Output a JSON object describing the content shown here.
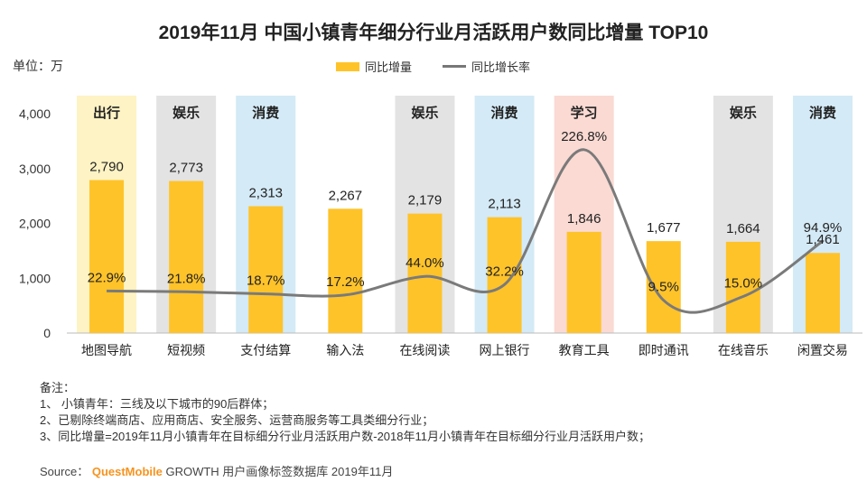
{
  "title": "2019年11月 中国小镇青年细分行业月活跃用户数同比增量 TOP10",
  "unit_label": "单位：万",
  "legend": {
    "bar": "同比增量",
    "line": "同比增长率"
  },
  "chart_data": {
    "type": "bar+line",
    "title": "2019年11月 中国小镇青年细分行业月活跃用户数同比增量 TOP10",
    "categories": [
      "地图导航",
      "短视频",
      "支付结算",
      "输入法",
      "在线阅读",
      "网上银行",
      "教育工具",
      "即时通讯",
      "在线音乐",
      "闲置交易"
    ],
    "groups": [
      "出行",
      "娱乐",
      "消费",
      "",
      "娱乐",
      "消费",
      "学习",
      "",
      "娱乐",
      "消费"
    ],
    "group_colors": {
      "出行": "#FDF3C4",
      "娱乐": "#E3E3E3",
      "消费": "#D4EAF6",
      "学习": "#FADAD3"
    },
    "series": [
      {
        "name": "同比增量",
        "type": "bar",
        "color": "#FFC32A",
        "values": [
          2790,
          2773,
          2313,
          2267,
          2179,
          2113,
          1846,
          1677,
          1664,
          1461
        ],
        "labels": [
          "2,790",
          "2,773",
          "2,313",
          "2,267",
          "2,179",
          "2,113",
          "1,846",
          "1,677",
          "1,664",
          "1,461"
        ]
      },
      {
        "name": "同比增长率",
        "type": "line",
        "color": "#7A7A7A",
        "values": [
          22.9,
          21.8,
          18.7,
          17.2,
          44.0,
          32.2,
          226.8,
          9.5,
          15.0,
          94.9
        ],
        "labels": [
          "22.9%",
          "21.8%",
          "18.7%",
          "17.2%",
          "44.0%",
          "32.2%",
          "226.8%",
          "9.5%",
          "15.0%",
          "94.9%"
        ]
      }
    ],
    "yaxis": {
      "ticks": [
        0,
        1000,
        2000,
        3000,
        4000
      ],
      "tick_labels": [
        "0",
        "1,000",
        "2,000",
        "3,000",
        "4,000"
      ],
      "ylim": [
        0,
        4000
      ]
    },
    "rate_ylim": [
      0,
      250
    ]
  },
  "notes": {
    "heading": "备注：",
    "lines": [
      "1、 小镇青年：三线及以下城市的90后群体；",
      "2、已剔除终端商店、应用商店、安全服务、运营商服务等工具类细分行业；",
      "3、同比增量=2019年11月小镇青年在目标细分行业月活跃用户数-2018年11月小镇青年在目标细分行业月活跃用户数；"
    ]
  },
  "source": {
    "prefix": "Source：",
    "brand": "QuestMobile",
    "rest": "GROWTH 用户画像标签数据库 2019年11月"
  }
}
